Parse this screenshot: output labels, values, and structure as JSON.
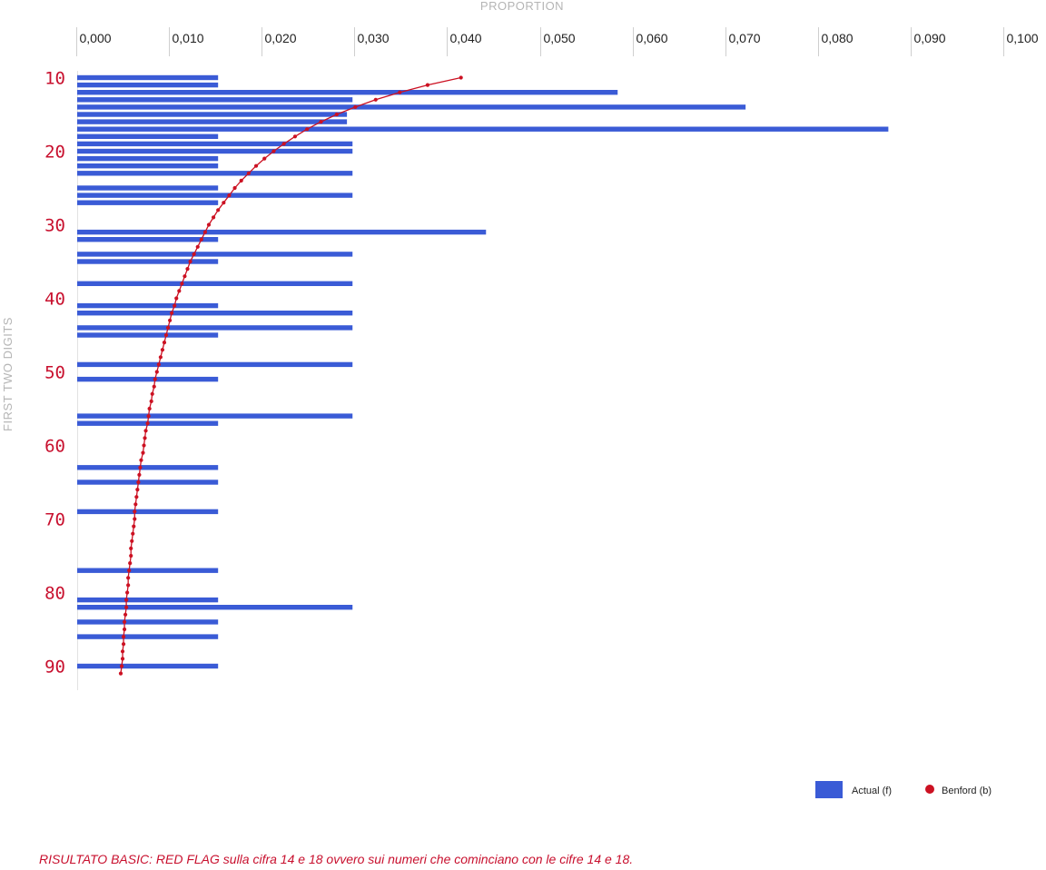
{
  "chart_data": {
    "type": "bar",
    "orientation": "horizontal",
    "xlabel": "PROPORTION",
    "ylabel": "FIRST TWO DIGITS",
    "xlim": [
      0,
      0.1
    ],
    "x_ticks": [
      "0,000",
      "0,010",
      "0,020",
      "0,030",
      "0,040",
      "0,050",
      "0,060",
      "0,070",
      "0,080",
      "0,090",
      "0,100"
    ],
    "y_ticks": [
      "10",
      "20",
      "30",
      "40",
      "50",
      "60",
      "70",
      "80",
      "90"
    ],
    "categories": [
      10,
      11,
      12,
      13,
      14,
      15,
      16,
      17,
      18,
      19,
      20,
      21,
      22,
      23,
      24,
      25,
      26,
      27,
      28,
      29,
      30,
      31,
      32,
      33,
      34,
      35,
      36,
      37,
      38,
      39,
      40,
      41,
      42,
      43,
      44,
      45,
      46,
      47,
      48,
      49,
      50,
      51,
      52,
      53,
      54,
      55,
      56,
      57,
      58,
      59,
      60,
      61,
      62,
      63,
      64,
      65,
      66,
      67,
      68,
      69,
      70,
      71,
      72,
      73,
      74,
      75,
      76,
      77,
      78,
      79,
      80,
      81,
      82,
      83,
      84,
      85,
      86,
      87,
      88,
      89,
      90,
      91
    ],
    "series": [
      {
        "name": "Actual (f)",
        "color": "#3a5bd6",
        "values": [
          0.0152,
          0.0152,
          0.0583,
          0.0297,
          0.0721,
          0.0291,
          0.0291,
          0.0875,
          0.0152,
          0.0297,
          0.0297,
          0.0152,
          0.0152,
          0.0297,
          0,
          0.0152,
          0.0297,
          0.0152,
          0,
          0,
          0,
          0.0441,
          0.0152,
          0,
          0.0297,
          0.0152,
          0,
          0,
          0.0297,
          0,
          0,
          0.0152,
          0.0297,
          0,
          0.0297,
          0.0152,
          0,
          0,
          0,
          0.0297,
          0,
          0.0152,
          0,
          0,
          0,
          0,
          0.0297,
          0.0152,
          0,
          0,
          0,
          0,
          0,
          0.0152,
          0,
          0.0152,
          0,
          0,
          0,
          0.0152,
          0,
          0,
          0,
          0,
          0,
          0,
          0,
          0.0152,
          0,
          0,
          0,
          0.0152,
          0.0297,
          0,
          0.0152,
          0,
          0.0152,
          0,
          0,
          0,
          0.0152,
          0
        ]
      },
      {
        "name": "Benford (b)",
        "color": "#cc1122",
        "values": [
          0.0414,
          0.0378,
          0.0348,
          0.0322,
          0.03,
          0.028,
          0.0263,
          0.0248,
          0.0235,
          0.0223,
          0.0212,
          0.0202,
          0.0193,
          0.0185,
          0.0177,
          0.017,
          0.0164,
          0.0158,
          0.0152,
          0.0147,
          0.0142,
          0.0138,
          0.0134,
          0.013,
          0.0126,
          0.0122,
          0.0119,
          0.0116,
          0.0113,
          0.011,
          0.0107,
          0.0105,
          0.0102,
          0.01,
          0.0098,
          0.0096,
          0.0094,
          0.0092,
          0.009,
          0.0088,
          0.0086,
          0.0084,
          0.0083,
          0.0081,
          0.008,
          0.0078,
          0.0077,
          0.0076,
          0.0074,
          0.0073,
          0.0072,
          0.0071,
          0.0069,
          0.0068,
          0.0067,
          0.0066,
          0.0065,
          0.0064,
          0.0063,
          0.0062,
          0.0062,
          0.0061,
          0.006,
          0.0059,
          0.0058,
          0.0058,
          0.0057,
          0.0056,
          0.0055,
          0.0055,
          0.0054,
          0.0053,
          0.0053,
          0.0052,
          0.0051,
          0.0051,
          0.005,
          0.005,
          0.0049,
          0.0049,
          0.0048,
          0.0047
        ]
      }
    ],
    "legend_position": "bottom-right",
    "grid": false
  },
  "footnote": "RISULTATO BASIC: RED FLAG sulla cifra 14 e 18 ovvero sui numeri che cominciano con le cifre 14 e 18."
}
